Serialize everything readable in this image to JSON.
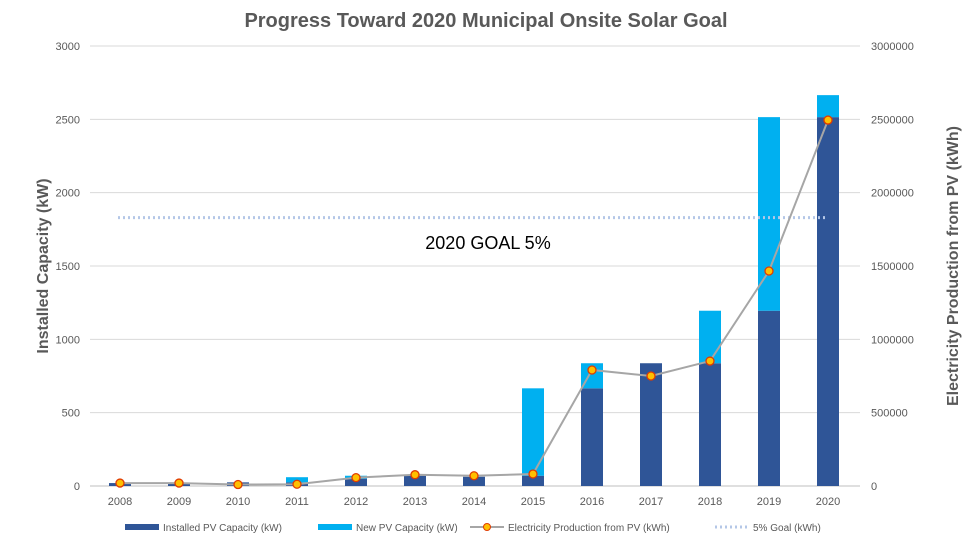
{
  "chart_data": {
    "type": "bar",
    "title": "Progress Toward 2020 Municipal Onsite Solar Goal",
    "ylabel": "Installed Capacity (kW)",
    "y2label": "Electricity Production from PV (kWh)",
    "ylim": [
      0,
      3000
    ],
    "y2lim": [
      0,
      3000000
    ],
    "yticks": [
      "0",
      "500",
      "1000",
      "1500",
      "2000",
      "2500",
      "3000"
    ],
    "y2ticks": [
      "0",
      "500000",
      "1000000",
      "1500000",
      "2000000",
      "2500000",
      "3000000"
    ],
    "categories": [
      "2008",
      "2009",
      "2010",
      "2011",
      "2012",
      "2013",
      "2014",
      "2015",
      "2016",
      "2017",
      "2018",
      "2019",
      "2020"
    ],
    "series": [
      {
        "name": "Installed PV Capacity (kW)",
        "type": "stacked-bar",
        "axis": "left",
        "color": "#2f5597",
        "values": [
          20,
          20,
          25,
          25,
          50,
          70,
          63,
          70,
          666,
          837,
          837,
          1195,
          2515
        ]
      },
      {
        "name": "New PV Capacity (kW)",
        "type": "stacked-bar",
        "axis": "left",
        "color": "#00b0f0",
        "values": [
          0,
          0,
          0,
          35,
          20,
          0,
          0,
          596,
          171,
          0,
          358,
          1320,
          150
        ]
      },
      {
        "name": "Electricity Production from PV (kWh)",
        "type": "line",
        "axis": "right",
        "color": "#a6a6a6",
        "marker": "#ffc000",
        "values": [
          20000,
          20000,
          10000,
          12000,
          57000,
          77000,
          70000,
          82000,
          791000,
          750000,
          852000,
          1466000,
          2495000
        ]
      },
      {
        "name": "5% Goal (kWh)",
        "type": "dotted-line",
        "axis": "right",
        "color": "#b4c7e7",
        "values": [
          1830000,
          1830000,
          1830000,
          1830000,
          1830000,
          1830000,
          1830000,
          1830000,
          1830000,
          1830000,
          1830000,
          1830000,
          1830000
        ]
      }
    ],
    "annotation": "2020 GOAL 5%",
    "grid": true,
    "legend": "bottom"
  }
}
